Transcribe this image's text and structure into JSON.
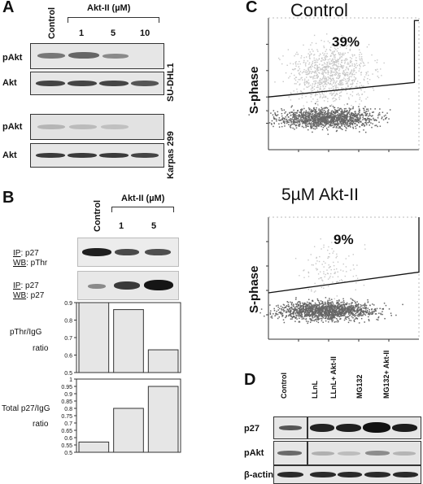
{
  "panel_a": {
    "letter": "A",
    "control_label": "Control",
    "drug_label": "Akt-II (µM)",
    "doses": [
      "1",
      "5",
      "10"
    ],
    "cell_line_1": "SU-DHL1",
    "cell_line_2": "Karpas 299",
    "row_pakt": "pAkt",
    "row_akt": "Akt"
  },
  "panel_b": {
    "letter": "B",
    "control_label": "Control",
    "drug_label": "Akt-II (µM)",
    "doses": [
      "1",
      "5"
    ],
    "blot1_ip_key": "IP",
    "blot1_ip_val": ": p27",
    "blot1_wb_key": "WB",
    "blot1_wb_val": ": pThr",
    "blot2_ip_key": "IP",
    "blot2_ip_val": ": p27",
    "blot2_wb_key": "WB",
    "blot2_wb_val": ": p27",
    "chart1_label_a": "pThr/IgG",
    "chart1_label_b": "ratio",
    "chart2_label_a": "Total p27/IgG",
    "chart2_label_b": "ratio"
  },
  "chart_data": [
    {
      "type": "bar",
      "categories": [
        "Control",
        "1",
        "5"
      ],
      "values": [
        0.91,
        0.86,
        0.63
      ],
      "ylim": [
        0.5,
        0.9
      ],
      "yticks": [
        "0.5",
        "0.6",
        "0.7",
        "0.8",
        "0.9"
      ],
      "title": "",
      "xlabel": "",
      "ylabel": "pThr/IgG ratio"
    },
    {
      "type": "bar",
      "categories": [
        "Control",
        "1",
        "5"
      ],
      "values": [
        0.57,
        0.8,
        0.95
      ],
      "ylim": [
        0.5,
        1.0
      ],
      "yticks": [
        "0.5",
        "0.55",
        "0.6",
        "0.65",
        "0.7",
        "0.75",
        "0.8",
        "0.85",
        "0.9",
        "0.95",
        "1"
      ],
      "title": "",
      "xlabel": "",
      "ylabel": "Total p27/IgG ratio"
    }
  ],
  "panel_c": {
    "letter": "C",
    "top_title": "Control",
    "top_pct": "39%",
    "bottom_title": "5µM Akt-II",
    "bottom_pct": "9%",
    "ylabel": "S-phase"
  },
  "panel_d": {
    "letter": "D",
    "lanes": [
      "Control",
      "LLnL",
      "LLnL+ Akt-II",
      "MG132",
      "MG132+ Akt-II"
    ],
    "row_p27": "p27",
    "row_pakt": "pAkt",
    "row_actin": "β-actin"
  },
  "colors": {
    "bar_fill": "#e6e6e6",
    "scatter_dark": "#666666",
    "scatter_light": "#c8c8c8"
  }
}
